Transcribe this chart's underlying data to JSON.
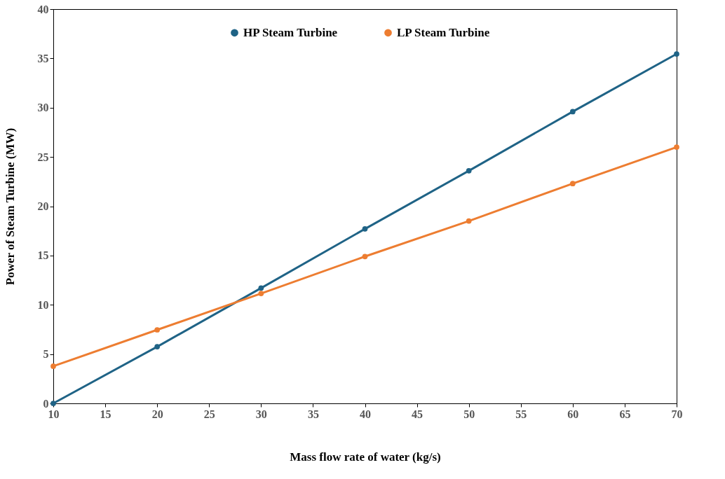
{
  "chart_data": {
    "type": "line",
    "xlabel": "Mass flow rate of water (kg/s)",
    "ylabel": "Power of Steam Turbine (MW)",
    "x": [
      10,
      20,
      30,
      40,
      50,
      60,
      70
    ],
    "series": [
      {
        "name": "HP Steam Turbine",
        "color": "#1f6386",
        "values": [
          0,
          5.75,
          11.7,
          17.7,
          23.6,
          29.6,
          35.45
        ]
      },
      {
        "name": "LP Steam Turbine",
        "color": "#ed7d31",
        "values": [
          3.77,
          7.46,
          11.15,
          14.9,
          18.5,
          22.3,
          26.0
        ]
      }
    ],
    "xlim": [
      10,
      70
    ],
    "xticks": [
      10,
      15,
      20,
      25,
      30,
      35,
      40,
      45,
      50,
      55,
      60,
      65,
      70
    ],
    "ylim": [
      0,
      40
    ],
    "yticks": [
      0,
      5,
      10,
      15,
      20,
      25,
      30,
      35,
      40
    ],
    "grid": false,
    "legend": "top",
    "marker": "circle",
    "line_style": "solid"
  }
}
